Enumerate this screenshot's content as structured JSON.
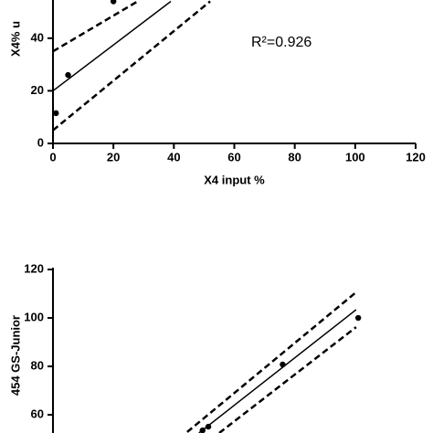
{
  "chart_data": [
    {
      "type": "scatter",
      "xlabel": "X4 input %",
      "ylabel": "X4% u",
      "annotation": "R²=0.926",
      "xlim": [
        0,
        120
      ],
      "xticks": [
        0,
        20,
        40,
        60,
        80,
        100,
        120
      ],
      "ylim": [
        0,
        54
      ],
      "yticks": [
        0,
        20,
        40
      ],
      "series": [
        {
          "style": "points",
          "color": "#000000",
          "x": [
            1,
            5,
            20
          ],
          "values": [
            11.5,
            26,
            54
          ]
        },
        {
          "style": "solid",
          "color": "#000000",
          "x": [
            0,
            39
          ],
          "values": [
            20,
            54
          ]
        },
        {
          "style": "dashed",
          "color": "#000000",
          "x": [
            0,
            28
          ],
          "values": [
            35,
            54
          ]
        },
        {
          "style": "dashed",
          "color": "#000000",
          "x": [
            0,
            52
          ],
          "values": [
            5,
            54
          ]
        }
      ]
    },
    {
      "type": "scatter",
      "ylabel": "454 GS-Junior",
      "xlim": [
        0,
        120
      ],
      "ylim": [
        52.5,
        120
      ],
      "yticks": [
        60,
        80,
        100,
        120
      ],
      "series": [
        {
          "style": "points",
          "color": "#000000",
          "x": [
            49.5,
            51.4,
            76,
            101
          ],
          "values": [
            53.6,
            55.1,
            80.8,
            100
          ]
        },
        {
          "style": "solid",
          "color": "#000000",
          "x": [
            48.3,
            100.3
          ],
          "values": [
            52.5,
            103.4
          ]
        },
        {
          "style": "dashed",
          "color": "#000000",
          "x": [
            44.4,
            100.3
          ],
          "values": [
            52.9,
            110.6
          ]
        },
        {
          "style": "dashed",
          "color": "#000000",
          "x": [
            55,
            100.3
          ],
          "values": [
            52.5,
            96.2
          ]
        }
      ]
    }
  ]
}
